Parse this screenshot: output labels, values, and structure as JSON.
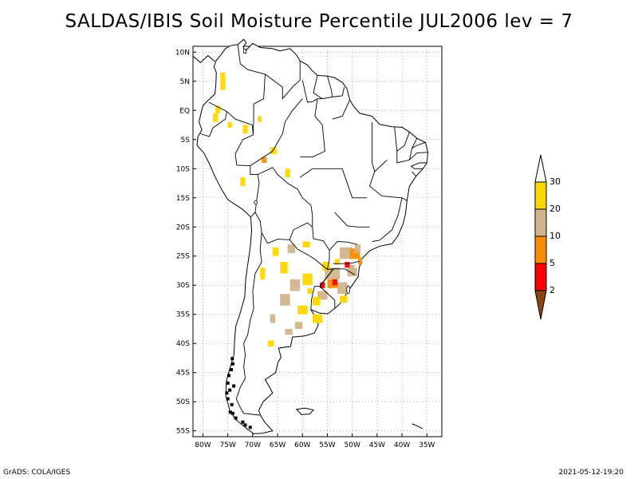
{
  "title": "SALDAS/IBIS Soil Moisture Percentile JUL2006 lev = 7",
  "map": {
    "lon_range": [
      -82,
      -32
    ],
    "lat_range": [
      -56,
      11
    ],
    "lat_ticks": [
      {
        "value": 10,
        "label": "10N"
      },
      {
        "value": 5,
        "label": "5N"
      },
      {
        "value": 0,
        "label": "EQ"
      },
      {
        "value": -5,
        "label": "5S"
      },
      {
        "value": -10,
        "label": "10S"
      },
      {
        "value": -15,
        "label": "15S"
      },
      {
        "value": -20,
        "label": "20S"
      },
      {
        "value": -25,
        "label": "25S"
      },
      {
        "value": -30,
        "label": "30S"
      },
      {
        "value": -35,
        "label": "35S"
      },
      {
        "value": -40,
        "label": "40S"
      },
      {
        "value": -45,
        "label": "45S"
      },
      {
        "value": -50,
        "label": "50S"
      },
      {
        "value": -55,
        "label": "55S"
      }
    ],
    "lon_ticks": [
      {
        "value": -80,
        "label": "80W"
      },
      {
        "value": -75,
        "label": "75W"
      },
      {
        "value": -70,
        "label": "70W"
      },
      {
        "value": -65,
        "label": "65W"
      },
      {
        "value": -60,
        "label": "60W"
      },
      {
        "value": -55,
        "label": "55W"
      },
      {
        "value": -50,
        "label": "50W"
      },
      {
        "value": -45,
        "label": "45W"
      },
      {
        "value": -40,
        "label": "40W"
      },
      {
        "value": -35,
        "label": "35W"
      }
    ],
    "grid": "dotted",
    "land_fill": "#ffffff",
    "outline_color": "#000000"
  },
  "legend": {
    "placement": "right",
    "levels": [
      {
        "label": "2",
        "color": "#8b4513"
      },
      {
        "label": "5",
        "color": "#ff0000"
      },
      {
        "label": "10",
        "color": "#ff8c00"
      },
      {
        "label": "20",
        "color": "#d2b48c"
      },
      {
        "label": "30",
        "color": "#ffd700"
      },
      {
        "label": "",
        "color": "#ffffff"
      }
    ]
  },
  "footer": {
    "left": "GrADS: COLA/IGES",
    "right": "2021-05-12-19:20"
  }
}
